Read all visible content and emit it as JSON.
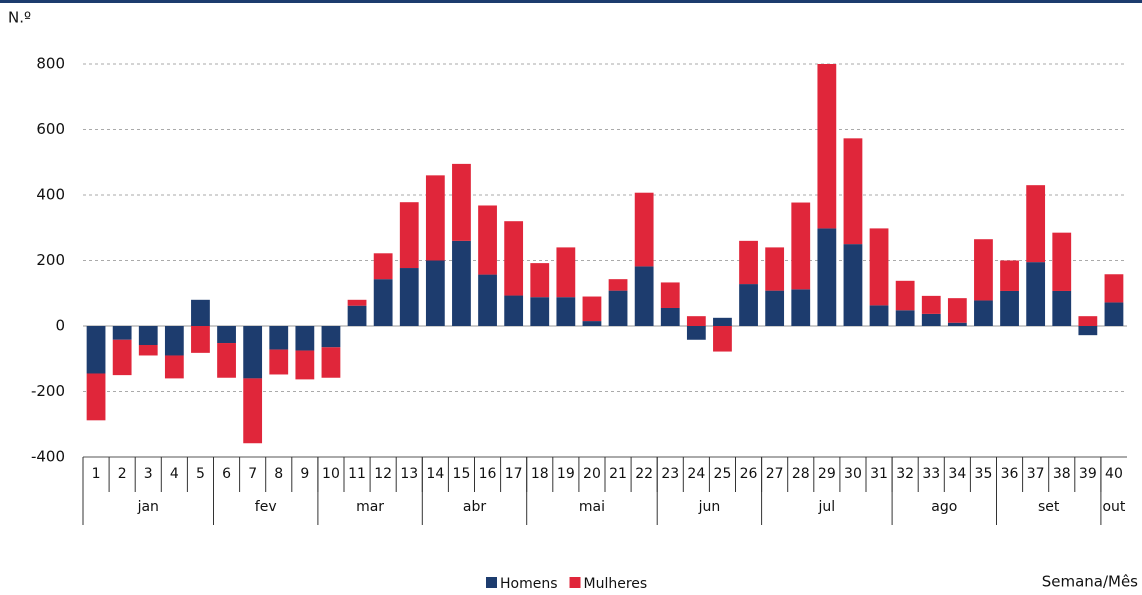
{
  "chart_data": {
    "type": "stacked-bar",
    "y_unit_label": "N.º",
    "x_label": "Semana/Mês",
    "categories": [
      "1",
      "2",
      "3",
      "4",
      "5",
      "6",
      "7",
      "8",
      "9",
      "10",
      "11",
      "12",
      "13",
      "14",
      "15",
      "16",
      "17",
      "18",
      "19",
      "20",
      "21",
      "22",
      "23",
      "24",
      "25",
      "26",
      "27",
      "28",
      "29",
      "30",
      "31",
      "32",
      "33",
      "34",
      "35",
      "36",
      "37",
      "38",
      "39",
      "40"
    ],
    "x_groups": [
      {
        "label": "jan",
        "span": 5
      },
      {
        "label": "fev",
        "span": 4
      },
      {
        "label": "mar",
        "span": 4
      },
      {
        "label": "abr",
        "span": 4
      },
      {
        "label": "mai",
        "span": 5
      },
      {
        "label": "jun",
        "span": 4
      },
      {
        "label": "jul",
        "span": 5
      },
      {
        "label": "ago",
        "span": 4
      },
      {
        "label": "set",
        "span": 4
      },
      {
        "label": "out",
        "span": 1
      }
    ],
    "series": [
      {
        "name": "Homens",
        "color": "#1d3c6e",
        "values": [
          -145,
          -42,
          -58,
          -90,
          80,
          -52,
          -160,
          -72,
          -75,
          -65,
          62,
          143,
          177,
          200,
          260,
          157,
          93,
          88,
          88,
          15,
          108,
          182,
          55,
          -42,
          25,
          128,
          108,
          112,
          298,
          250,
          63,
          48,
          37,
          10,
          78,
          107,
          195,
          107,
          -28,
          72
        ]
      },
      {
        "name": "Mulheres",
        "color": "#e0263a",
        "values": [
          -143,
          -108,
          -32,
          -70,
          -82,
          -106,
          -198,
          -76,
          -88,
          -93,
          18,
          79,
          201,
          260,
          235,
          211,
          227,
          104,
          152,
          75,
          35,
          225,
          78,
          30,
          -78,
          132,
          132,
          265,
          502,
          323,
          235,
          90,
          55,
          75,
          187,
          93,
          235,
          178,
          30,
          86
        ]
      }
    ],
    "ylim": [
      -400,
      800
    ],
    "yticks": [
      -400,
      -200,
      0,
      200,
      400,
      600,
      800
    ],
    "grid": true
  }
}
